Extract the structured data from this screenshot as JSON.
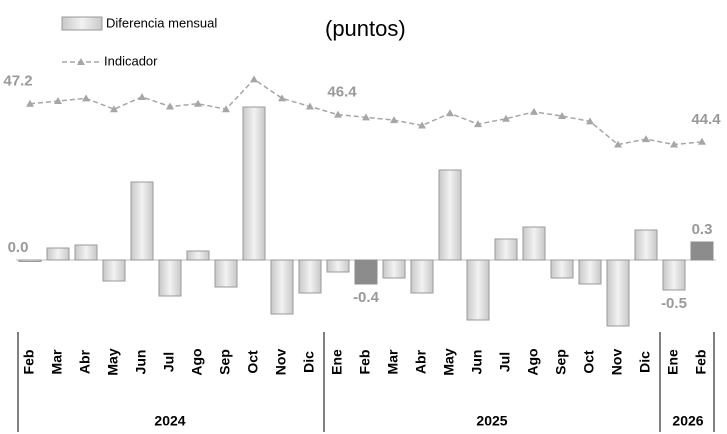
{
  "chart_data": {
    "type": "bar_line",
    "subtitle": "(puntos)",
    "categories": [
      "Feb",
      "Mar",
      "Abr",
      "May",
      "Jun",
      "Jul",
      "Ago",
      "Sep",
      "Oct",
      "Nov",
      "Dic",
      "Ene",
      "Feb",
      "Mar",
      "Abr",
      "May",
      "Jun",
      "Jul",
      "Ago",
      "Sep",
      "Oct",
      "Nov",
      "Dic",
      "Ene",
      "Feb"
    ],
    "category_years": [
      "2024",
      "2024",
      "2024",
      "2024",
      "2024",
      "2024",
      "2024",
      "2024",
      "2024",
      "2024",
      "2024",
      "2025",
      "2025",
      "2025",
      "2025",
      "2025",
      "2025",
      "2025",
      "2025",
      "2025",
      "2025",
      "2025",
      "2025",
      "2026",
      "2026"
    ],
    "series": [
      {
        "name": "Diferencia mensual",
        "type": "bar",
        "color": "#d9d9d9",
        "colors": [
          "#d9d9d9",
          "#d9d9d9",
          "#d9d9d9",
          "#d9d9d9",
          "#d9d9d9",
          "#d9d9d9",
          "#d9d9d9",
          "#d9d9d9",
          "#d9d9d9",
          "#d9d9d9",
          "#d9d9d9",
          "#d9d9d9",
          "#8c8c8c",
          "#d9d9d9",
          "#d9d9d9",
          "#d9d9d9",
          "#d9d9d9",
          "#d9d9d9",
          "#d9d9d9",
          "#d9d9d9",
          "#d9d9d9",
          "#d9d9d9",
          "#d9d9d9",
          "#d9d9d9",
          "#8c8c8c"
        ],
        "values": [
          0.0,
          0.2,
          0.25,
          -0.35,
          1.3,
          -0.6,
          0.15,
          -0.45,
          2.55,
          -0.9,
          -0.55,
          -0.2,
          -0.4,
          -0.3,
          -0.55,
          1.5,
          -1.0,
          0.35,
          0.55,
          -0.3,
          -0.4,
          -1.1,
          0.5,
          -0.5,
          0.3
        ],
        "value_labels": [
          "0.0",
          null,
          null,
          null,
          null,
          null,
          null,
          null,
          null,
          null,
          null,
          null,
          "-0.4",
          null,
          null,
          null,
          null,
          null,
          null,
          null,
          null,
          null,
          null,
          "-0.5",
          "0.3"
        ]
      },
      {
        "name": "Indicador",
        "type": "line",
        "axis": "y2",
        "color": "#a6a6a6",
        "values": [
          47.2,
          47.4,
          47.6,
          46.8,
          47.7,
          47.0,
          47.2,
          46.8,
          49.0,
          47.6,
          47.0,
          46.4,
          46.2,
          46.0,
          45.6,
          46.5,
          45.7,
          46.1,
          46.6,
          46.3,
          45.9,
          44.2,
          44.6,
          44.2,
          44.4
        ],
        "value_labels": [
          "47.2",
          null,
          null,
          null,
          null,
          null,
          null,
          null,
          null,
          null,
          null,
          "46.4",
          null,
          null,
          null,
          null,
          null,
          null,
          null,
          null,
          null,
          null,
          null,
          null,
          "44.4"
        ]
      }
    ],
    "ylim": [
      -1.2,
      3.6
    ],
    "y2lim": [
      30.4,
      51.6
    ]
  }
}
